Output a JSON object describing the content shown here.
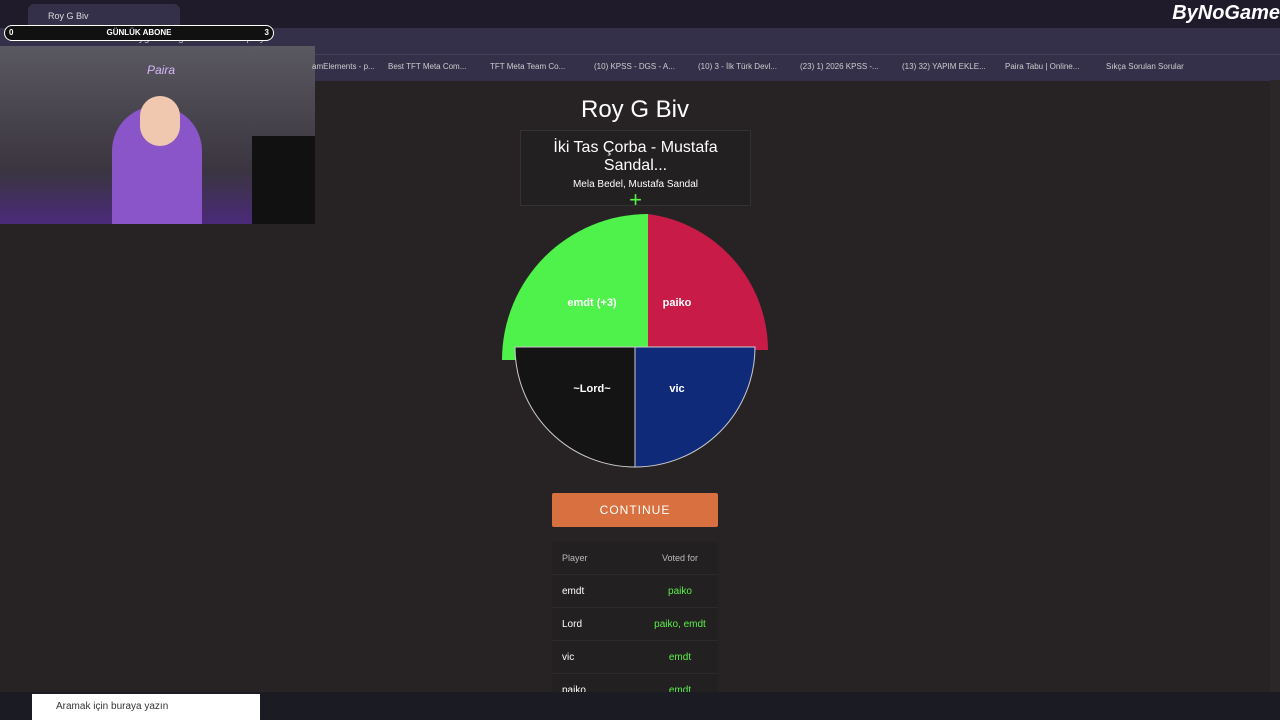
{
  "browser": {
    "tab_title": "Roy G Biv",
    "url": "roygbiv.fm/game/HLJYPS/play",
    "brand": "ByNoGame",
    "bookmarks": [
      "amElements - p...",
      "Best TFT Meta Com...",
      "TFT Meta Team Co...",
      "(10) KPSS - DGS - A...",
      "(10) 3 - İlk Türk Devl...",
      "(23) 1) 2026 KPSS -...",
      "(13) 32) YAPIM EKLE...",
      "Paira Tabu | Online...",
      "Sıkça Sorulan Sorular"
    ]
  },
  "overlay": {
    "goal_label": "GÜNLÜK ABONE",
    "goal_start": "0",
    "goal_end": "3",
    "sign": "Paira"
  },
  "page": {
    "title": "Roy G Biv",
    "song": {
      "title": "İki Tas Çorba - Mustafa Sandal...",
      "artists": "Mela Bedel, Mustafa Sandal",
      "add": "+"
    },
    "wheel": [
      "emdt (+3)",
      "paiko",
      "~Lord~",
      "vic"
    ],
    "button": "CONTINUE",
    "table": {
      "headers": [
        "Player",
        "Voted for"
      ],
      "rows": [
        [
          "emdt",
          "paiko"
        ],
        [
          "Lord",
          "paiko, emdt"
        ],
        [
          "vic",
          "emdt"
        ],
        [
          "paiko",
          "emdt"
        ]
      ]
    }
  },
  "taskbar": {
    "search": "Aramak için buraya yazın"
  }
}
